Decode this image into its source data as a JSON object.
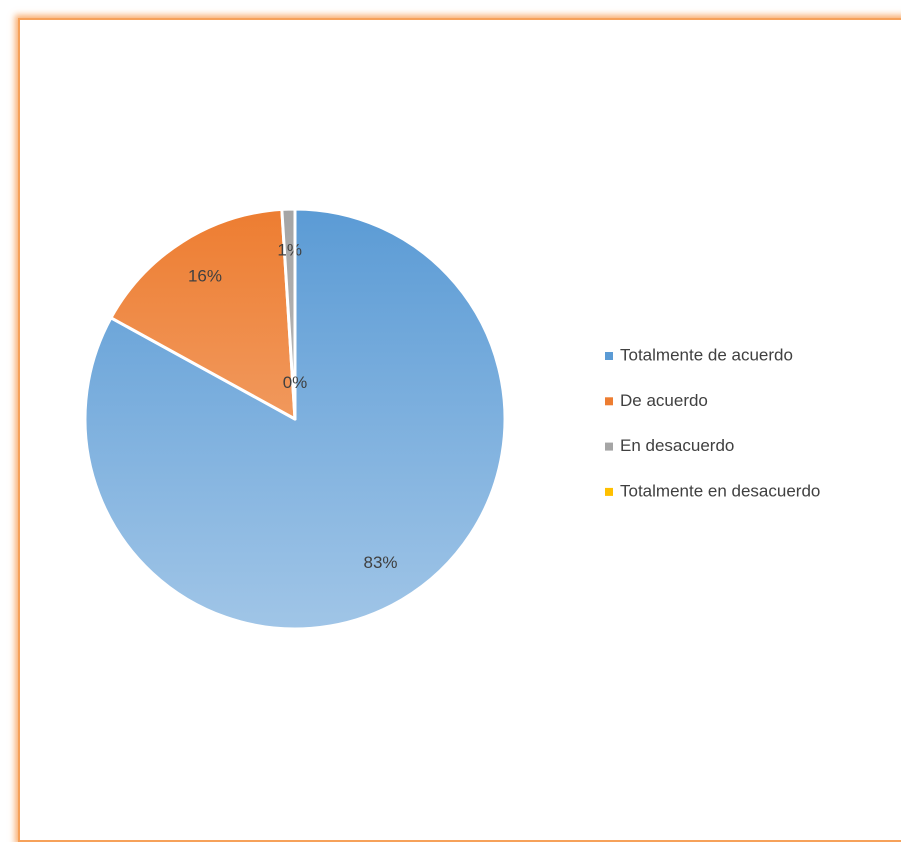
{
  "chart_data": {
    "type": "pie",
    "categories": [
      "Totalmente de acuerdo",
      "De acuerdo",
      "En desacuerdo",
      "Totalmente en desacuerdo"
    ],
    "values": [
      83,
      16,
      1,
      0
    ],
    "value_labels": [
      "83%",
      "16%",
      "1%",
      "0%"
    ],
    "colors": [
      "#5b9bd5",
      "#ed7d31",
      "#a5a5a5",
      "#ffc000"
    ],
    "legend": "right"
  }
}
